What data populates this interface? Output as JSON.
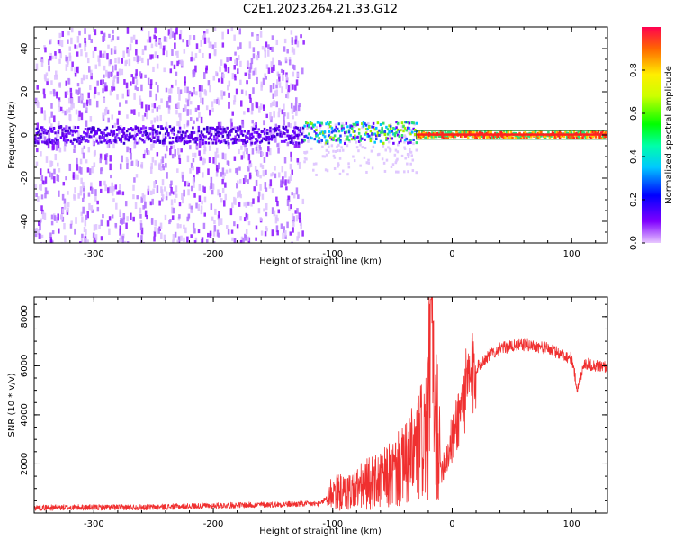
{
  "colors": {
    "snr_line": "#f03030",
    "spectrogram_low": "#7a00ff",
    "spectrogram_mid": "#22dd22",
    "spectrogram_high": "#ff2020"
  },
  "chart_data": [
    {
      "type": "heatmap",
      "title": "C2E1.2023.264.21.33.G12",
      "xlabel": "Height of straight line (km)",
      "ylabel": "Frequency (Hz)",
      "xlim": [
        -350,
        130
      ],
      "ylim": [
        -50,
        50
      ],
      "xticks": [
        -300,
        -200,
        -100,
        0,
        100
      ],
      "xtick_labels": [
        "-300",
        "-200",
        "-100",
        "0",
        "100"
      ],
      "yticks": [
        -40,
        -20,
        0,
        20,
        40
      ],
      "ytick_labels": [
        "-40",
        "-20",
        "0",
        "20",
        "40"
      ],
      "grid": false,
      "colorbar": {
        "label": "Normalized spectral amplitude",
        "range": [
          0,
          1
        ],
        "ticks": [
          0.0,
          0.2,
          0.4,
          0.6,
          0.8
        ],
        "tick_labels": [
          "0.0",
          "0.2",
          "0.4",
          "0.6",
          "0.8"
        ],
        "colormap": "hsv-reversed (magenta → blue → cyan → green → yellow → red)"
      },
      "regions": [
        {
          "x_range": [
            -350,
            -125
          ],
          "freq_spread_hz": [
            -50,
            50
          ],
          "amplitude": "low (0.0–0.2)"
        },
        {
          "x_range": [
            -125,
            -30
          ],
          "freq_spread_hz": [
            -12,
            6
          ],
          "amplitude": "low to mid (0.1–0.6)"
        },
        {
          "x_range": [
            -30,
            130
          ],
          "freq_spread_hz": [
            -2,
            2
          ],
          "amplitude": "high (0.8–1.0)"
        }
      ]
    },
    {
      "type": "line",
      "xlabel": "Height of straight line (km)",
      "ylabel": "SNR (10 * v/v)",
      "xlim": [
        -350,
        130
      ],
      "ylim": [
        0,
        8800
      ],
      "xticks": [
        -300,
        -200,
        -100,
        0,
        100
      ],
      "xtick_labels": [
        "-300",
        "-200",
        "-100",
        "0",
        "100"
      ],
      "yticks": [
        2000,
        4000,
        6000,
        8000
      ],
      "ytick_labels": [
        "2000",
        "4000",
        "6000",
        "8000"
      ],
      "grid": false,
      "series": [
        {
          "x": [
            -350,
            -300,
            -250,
            -200,
            -150,
            -110,
            -100,
            -90,
            -80,
            -70,
            -60,
            -50,
            -40,
            -30,
            -25,
            -20,
            -18,
            -15,
            -12,
            -10,
            -5,
            0,
            10,
            20,
            30,
            40,
            50,
            60,
            70,
            80,
            90,
            100,
            105,
            110,
            120,
            130
          ],
          "y": [
            220,
            230,
            240,
            300,
            350,
            380,
            900,
            800,
            1000,
            1200,
            1300,
            1600,
            1900,
            2500,
            3000,
            3400,
            8700,
            3300,
            3800,
            1800,
            2200,
            3000,
            4800,
            5900,
            6400,
            6700,
            6800,
            6850,
            6800,
            6700,
            6500,
            6300,
            5000,
            6100,
            6000,
            5950
          ]
        }
      ]
    }
  ]
}
